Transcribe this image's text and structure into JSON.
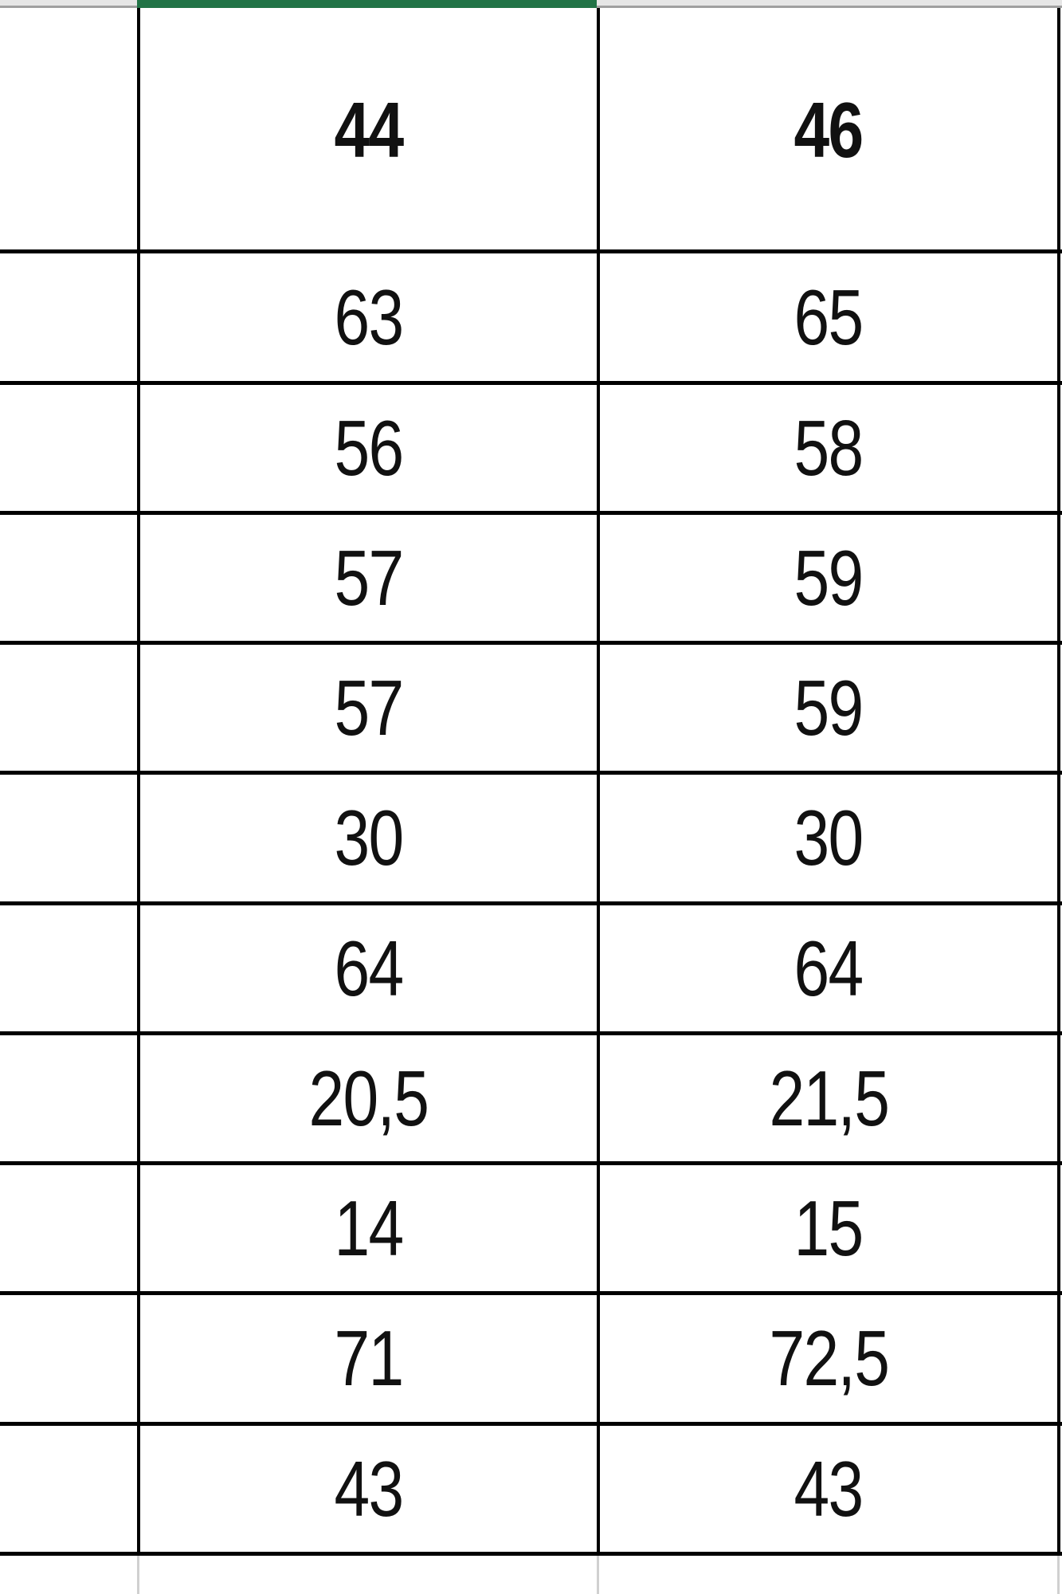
{
  "sheet": {
    "accent_color": "#217346",
    "selected_column_index": 0,
    "header": [
      "44",
      "46"
    ],
    "rows": [
      [
        "63",
        "65"
      ],
      [
        "56",
        "58"
      ],
      [
        "57",
        "59"
      ],
      [
        "57",
        "59"
      ],
      [
        "30",
        "30"
      ],
      [
        "64",
        "64"
      ],
      [
        "20,5",
        "21,5"
      ],
      [
        "14",
        "15"
      ],
      [
        "71",
        "72,5"
      ],
      [
        "43",
        "43"
      ]
    ]
  }
}
